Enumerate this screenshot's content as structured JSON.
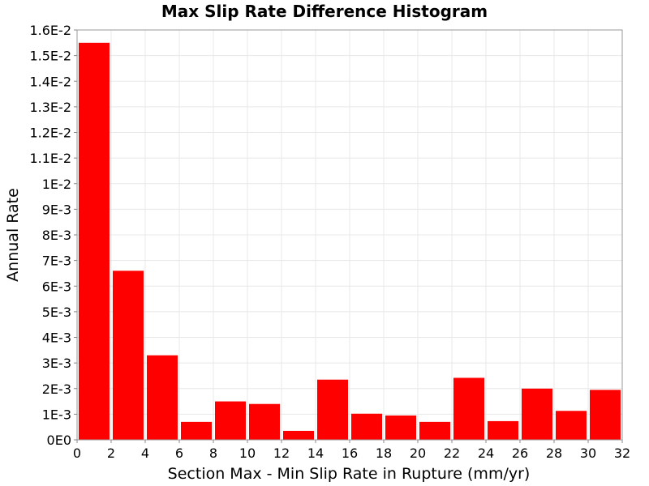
{
  "chart_data": {
    "type": "bar",
    "title": "Max Slip Rate Difference Histogram",
    "xlabel": "Section Max - Min Slip Rate in Rupture (mm/yr)",
    "ylabel": "Annual Rate",
    "xlim": [
      0,
      32
    ],
    "ylim": [
      0,
      0.016
    ],
    "bin_width": 2,
    "bins": [
      {
        "x0": 0,
        "x1": 2,
        "value": 0.0155
      },
      {
        "x0": 2,
        "x1": 4,
        "value": 0.0066
      },
      {
        "x0": 4,
        "x1": 6,
        "value": 0.0033
      },
      {
        "x0": 6,
        "x1": 8,
        "value": 0.0007
      },
      {
        "x0": 8,
        "x1": 10,
        "value": 0.0015
      },
      {
        "x0": 10,
        "x1": 12,
        "value": 0.0014
      },
      {
        "x0": 12,
        "x1": 14,
        "value": 0.00035
      },
      {
        "x0": 14,
        "x1": 16,
        "value": 0.00235
      },
      {
        "x0": 16,
        "x1": 18,
        "value": 0.00102
      },
      {
        "x0": 18,
        "x1": 20,
        "value": 0.00095
      },
      {
        "x0": 20,
        "x1": 22,
        "value": 0.0007
      },
      {
        "x0": 22,
        "x1": 24,
        "value": 0.00242
      },
      {
        "x0": 24,
        "x1": 26,
        "value": 0.00073
      },
      {
        "x0": 26,
        "x1": 28,
        "value": 0.002
      },
      {
        "x0": 28,
        "x1": 30,
        "value": 0.00113
      },
      {
        "x0": 30,
        "x1": 32,
        "value": 0.00195
      }
    ],
    "x_ticks": [
      {
        "value": 0,
        "label": "0"
      },
      {
        "value": 2,
        "label": "2"
      },
      {
        "value": 4,
        "label": "4"
      },
      {
        "value": 6,
        "label": "6"
      },
      {
        "value": 8,
        "label": "8"
      },
      {
        "value": 10,
        "label": "10"
      },
      {
        "value": 12,
        "label": "12"
      },
      {
        "value": 14,
        "label": "14"
      },
      {
        "value": 16,
        "label": "16"
      },
      {
        "value": 18,
        "label": "18"
      },
      {
        "value": 20,
        "label": "20"
      },
      {
        "value": 22,
        "label": "22"
      },
      {
        "value": 24,
        "label": "24"
      },
      {
        "value": 26,
        "label": "26"
      },
      {
        "value": 28,
        "label": "28"
      },
      {
        "value": 30,
        "label": "30"
      },
      {
        "value": 32,
        "label": "32"
      }
    ],
    "y_ticks": [
      {
        "value": 0,
        "label": "0E0"
      },
      {
        "value": 0.001,
        "label": "1E-3"
      },
      {
        "value": 0.002,
        "label": "2E-3"
      },
      {
        "value": 0.003,
        "label": "3E-3"
      },
      {
        "value": 0.004,
        "label": "4E-3"
      },
      {
        "value": 0.005,
        "label": "5E-3"
      },
      {
        "value": 0.006,
        "label": "6E-3"
      },
      {
        "value": 0.007,
        "label": "7E-3"
      },
      {
        "value": 0.008,
        "label": "8E-3"
      },
      {
        "value": 0.009,
        "label": "9E-3"
      },
      {
        "value": 0.01,
        "label": "1E-2"
      },
      {
        "value": 0.011,
        "label": "1.1E-2"
      },
      {
        "value": 0.012,
        "label": "1.2E-2"
      },
      {
        "value": 0.013,
        "label": "1.3E-2"
      },
      {
        "value": 0.014,
        "label": "1.4E-2"
      },
      {
        "value": 0.015,
        "label": "1.5E-2"
      },
      {
        "value": 0.016,
        "label": "1.6E-2"
      }
    ],
    "grid": true,
    "legend": "none",
    "colors": {
      "bar": "#ff0000",
      "grid": "#e8e8e8",
      "frame": "#9a9a9a"
    }
  }
}
